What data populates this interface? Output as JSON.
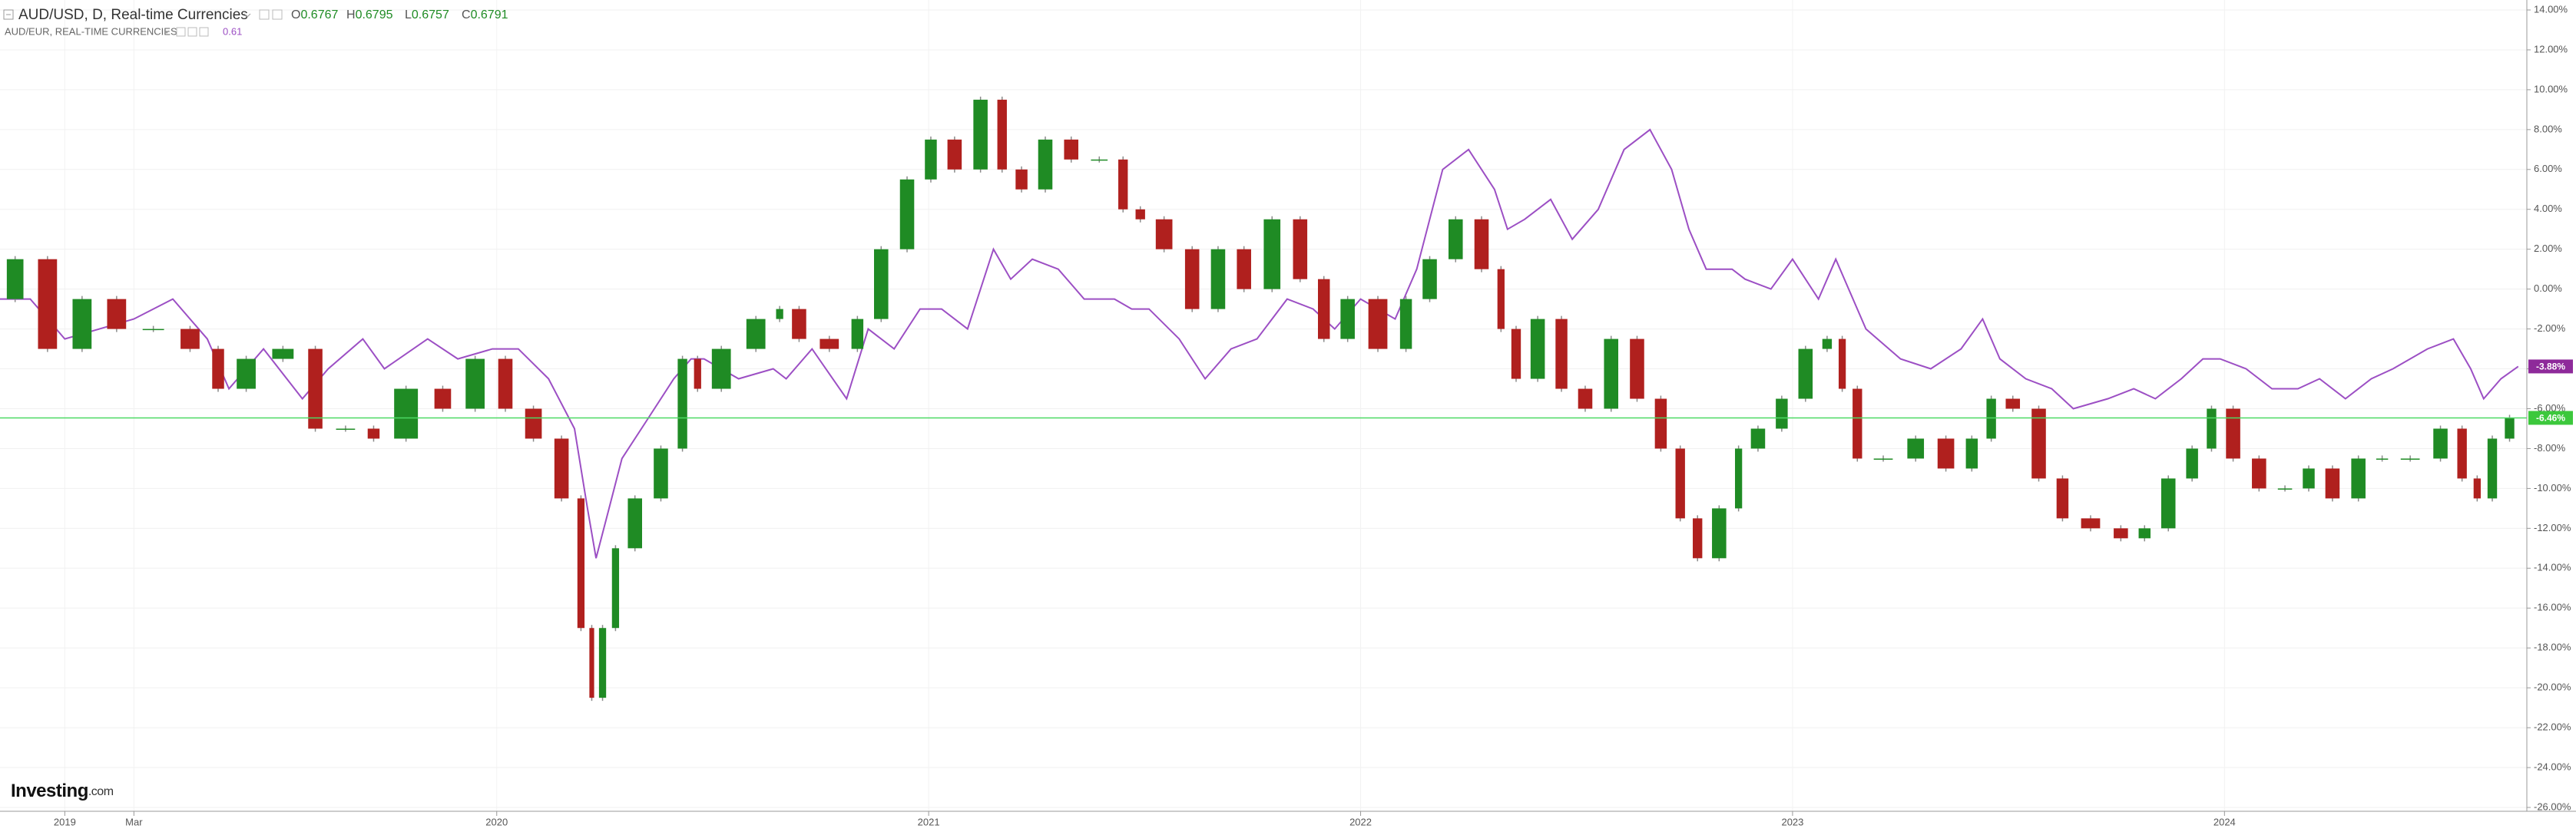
{
  "chart_data": {
    "type": "candlestick",
    "title": "AUD/USD, D, Real-time Currencies",
    "ohlc": [
      {
        "label": "O",
        "value": 0.6767
      },
      {
        "label": "H",
        "value": 0.6795
      },
      {
        "label": "L",
        "value": 0.6757
      },
      {
        "label": "C",
        "value": 0.6791
      }
    ],
    "compare_title": "AUD/EUR, REAL-TIME CURRENCIES",
    "compare_price": 0.61,
    "logo": "Investing",
    "logo_suffix": ".com",
    "x": [
      2018.85,
      2018.92,
      2019.0,
      2019.08,
      2019.16,
      2019.25,
      2019.33,
      2019.38,
      2019.46,
      2019.55,
      2019.61,
      2019.69,
      2019.74,
      2019.84,
      2019.91,
      2019.99,
      2020.05,
      2020.12,
      2020.18,
      2020.21,
      2020.23,
      2020.26,
      2020.29,
      2020.35,
      2020.41,
      2020.45,
      2020.48,
      2020.56,
      2020.64,
      2020.67,
      2020.73,
      2020.81,
      2020.86,
      2020.92,
      2020.98,
      2021.03,
      2021.09,
      2021.15,
      2021.19,
      2021.24,
      2021.3,
      2021.36,
      2021.43,
      2021.47,
      2021.51,
      2021.58,
      2021.64,
      2021.7,
      2021.76,
      2021.83,
      2021.89,
      2021.94,
      2022.0,
      2022.08,
      2022.13,
      2022.19,
      2022.25,
      2022.31,
      2022.34,
      2022.38,
      2022.44,
      2022.49,
      2022.55,
      2022.61,
      2022.67,
      2022.72,
      2022.76,
      2022.8,
      2022.86,
      2022.89,
      2022.95,
      2023.0,
      2023.06,
      2023.1,
      2023.13,
      2023.17,
      2023.25,
      2023.32,
      2023.39,
      2023.44,
      2023.48,
      2023.54,
      2023.6,
      2023.65,
      2023.73,
      2023.79,
      2023.84,
      2023.9,
      2023.95,
      2023.99,
      2024.05,
      2024.11,
      2024.17,
      2024.22,
      2024.28,
      2024.34,
      2024.39,
      2024.47,
      2024.53,
      2024.57,
      2024.6,
      2024.64,
      2024.68
    ],
    "series": [
      {
        "name": "AUD/USD",
        "type": "candlestick",
        "up_color": "#1f8b24",
        "down_color": "#b0201e",
        "color": "#4cd964",
        "last_value_label": "-6.46%",
        "values": [
          -0.5,
          1.5,
          -3,
          -0.5,
          -2,
          -2,
          -3,
          -5,
          -3.5,
          -3,
          -7,
          -7,
          -7.5,
          -5,
          -6,
          -3.5,
          -6,
          -7.5,
          -10.5,
          -17,
          -20.5,
          -17,
          -13,
          -10.5,
          -8,
          -3.5,
          -5,
          -3,
          -1.5,
          -1,
          -2.5,
          -3,
          -1.5,
          2,
          5.5,
          7.5,
          6,
          9.5,
          6,
          5,
          7.5,
          6.5,
          6.5,
          4,
          3.5,
          2,
          -1,
          2,
          0,
          3.5,
          0.5,
          -2.5,
          -0.5,
          -3,
          -0.5,
          1.5,
          3.5,
          1,
          -2,
          -4.5,
          -1.5,
          -5,
          -6,
          -2.5,
          -5.5,
          -8,
          -11.5,
          -13.5,
          -11,
          -8,
          -7,
          -5.5,
          -3,
          -2.5,
          -5,
          -8.5,
          -8.5,
          -7.5,
          -9,
          -7.5,
          -5.5,
          -6,
          -9.5,
          -11.5,
          -12,
          -12.5,
          -12,
          -9.5,
          -8,
          -6,
          -8.5,
          -10,
          -10,
          -9,
          -10.5,
          -8.5,
          -8.5,
          -8.5,
          -7,
          -9.5,
          -10.5,
          -7.5,
          -6.46
        ]
      },
      {
        "name": "AUD/EUR",
        "type": "line",
        "color": "#9c4fc4",
        "last_value_label": "-3.88%",
        "values": [
          -0.5,
          -0.5,
          -2.5,
          -2,
          -1.5,
          -0.5,
          -2.5,
          -5,
          -3,
          -5.5,
          -4,
          -2.5,
          -4,
          -2.5,
          -3.5,
          -3,
          -3,
          -4.5,
          -7,
          -11,
          -13.5,
          -11,
          -8.5,
          -6.5,
          -4.5,
          -3.5,
          -3.5,
          -4.5,
          -4,
          -4.5,
          -3,
          -5.5,
          -2,
          -3,
          -1,
          -1,
          -2,
          2,
          0.5,
          1.5,
          1,
          -0.5,
          -0.5,
          -1,
          -1,
          -2.5,
          -4.5,
          -3,
          -2.5,
          -0.5,
          -1,
          -2,
          -0.5,
          -1.5,
          1,
          6,
          7,
          5,
          3,
          3.5,
          4.5,
          2.5,
          4,
          7,
          8,
          6,
          3,
          1,
          1,
          0.5,
          0,
          1.5,
          -0.5,
          1.5,
          0,
          -2,
          -3.5,
          -4,
          -3,
          -1.5,
          -3.5,
          -4.5,
          -5,
          -6,
          -5.5,
          -5,
          -5.5,
          -4.5,
          -3.5,
          -3.5,
          -4,
          -5,
          -5,
          -4.5,
          -5.5,
          -4.5,
          -4,
          -3,
          -2.5,
          -4,
          -5.5,
          -4.5,
          -3.88
        ]
      }
    ],
    "xlim": [
      2018.85,
      2024.7
    ],
    "xticks": [
      2019,
      {
        "value": 2019.16,
        "label": "Mar"
      },
      2020,
      2021,
      2022,
      2023,
      2024
    ],
    "ylim": [
      -26,
      14
    ],
    "yticks": [
      {
        "value": 14,
        "label": "14.00%"
      },
      {
        "value": 12,
        "label": "12.00%"
      },
      {
        "value": 10,
        "label": "10.00%"
      },
      {
        "value": 8,
        "label": "8.00%"
      },
      {
        "value": 6,
        "label": "6.00%"
      },
      {
        "value": 4,
        "label": "4.00%"
      },
      {
        "value": 2,
        "label": "2.00%"
      },
      {
        "value": 0,
        "label": "0.00%"
      },
      {
        "value": -2,
        "label": "-2.00%"
      },
      {
        "value": -4,
        "label": "-4.00%"
      },
      {
        "value": -6,
        "label": "-6.00%"
      },
      {
        "value": -8,
        "label": "-8.00%"
      },
      {
        "value": -10,
        "label": "-10.00%"
      },
      {
        "value": -12,
        "label": "-12.00%"
      },
      {
        "value": -14,
        "label": "-14.00%"
      },
      {
        "value": -16,
        "label": "-16.00%"
      },
      {
        "value": -18,
        "label": "-18.00%"
      },
      {
        "value": -20,
        "label": "-20.00%"
      },
      {
        "value": -22,
        "label": "-22.00%"
      },
      {
        "value": -24,
        "label": "-24.00%"
      },
      {
        "value": -26,
        "label": "-26.00%"
      }
    ],
    "grid": true,
    "y_axis_side": "right"
  }
}
